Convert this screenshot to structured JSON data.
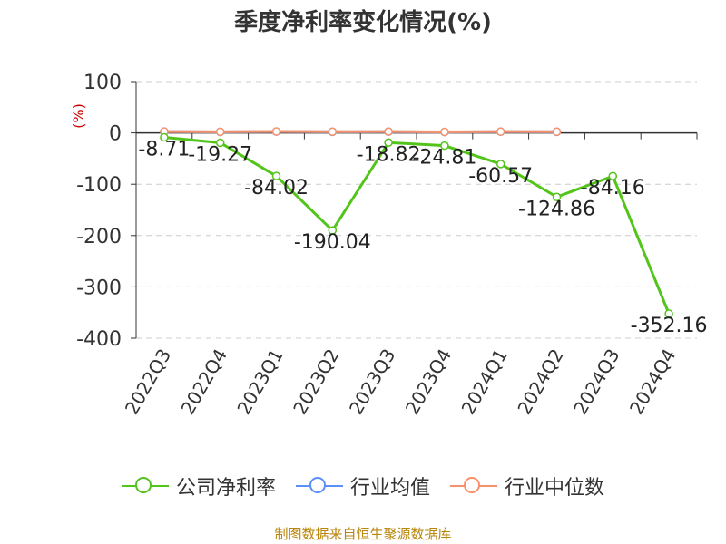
{
  "title": "季度净利率变化情况(%)",
  "source": "制图数据来自恒生聚源数据库",
  "chart_data": {
    "type": "line",
    "title": "季度净利率变化情况(%)",
    "ylabel": "(%)",
    "xlabel": "",
    "ylim": [
      -400,
      100
    ],
    "yticks": [
      100,
      0,
      -100,
      -200,
      -300,
      -400
    ],
    "categories": [
      "2022Q3",
      "2022Q4",
      "2023Q1",
      "2023Q2",
      "2023Q3",
      "2023Q4",
      "2024Q1",
      "2024Q2",
      "2024Q3",
      "2024Q4"
    ],
    "grid": true,
    "legend_position": "bottom",
    "series": [
      {
        "name": "公司净利率",
        "color": "#52c41a",
        "values": [
          -8.71,
          -19.27,
          -84.02,
          -190.04,
          -18.82,
          -24.81,
          -60.57,
          -124.86,
          -84.16,
          -352.16
        ],
        "labels": [
          "-8.71",
          "-19.27",
          "-84.02",
          "-190.04",
          "-18.82",
          "-24.81",
          "-60.57",
          "-124.86",
          "-84.16",
          "-352.16"
        ]
      },
      {
        "name": "行业均值",
        "color": "#5b8ff9",
        "values": [
          2.5,
          2.0,
          2.6,
          2.2,
          2.4,
          1.8,
          2.3,
          2.1,
          null,
          null
        ]
      },
      {
        "name": "行业中位数",
        "color": "#f6926b",
        "values": [
          2.7,
          2.2,
          2.8,
          2.4,
          2.6,
          2.0,
          2.5,
          2.3,
          null,
          null
        ]
      }
    ]
  }
}
